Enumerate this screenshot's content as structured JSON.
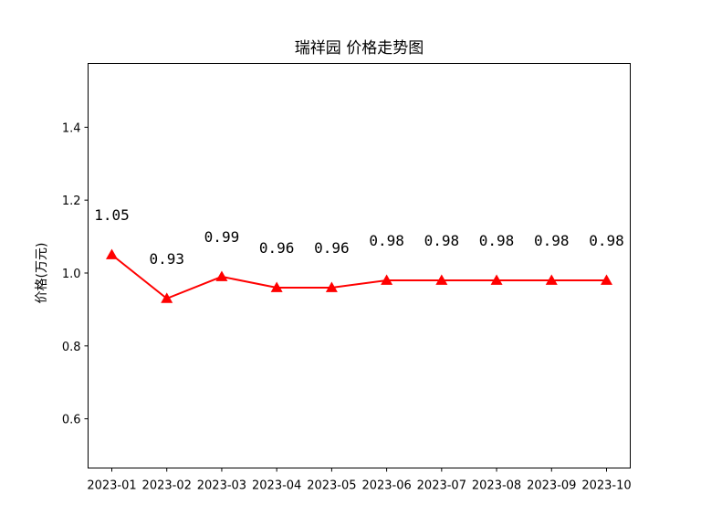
{
  "chart_data": {
    "type": "line",
    "title": "瑞祥园 价格走势图",
    "xlabel": "",
    "ylabel": "价格(万元)",
    "categories": [
      "2023-01",
      "2023-02",
      "2023-03",
      "2023-04",
      "2023-05",
      "2023-06",
      "2023-07",
      "2023-08",
      "2023-09",
      "2023-10"
    ],
    "values": [
      1.05,
      0.93,
      0.99,
      0.96,
      0.96,
      0.98,
      0.98,
      0.98,
      0.98,
      0.98
    ],
    "data_labels": [
      "1.05",
      "0.93",
      "0.99",
      "0.96",
      "0.96",
      "0.98",
      "0.98",
      "0.98",
      "0.98",
      "0.98"
    ],
    "ylim": [
      0.465,
      1.575
    ],
    "yticks": [
      0.6,
      0.8,
      1.0,
      1.2,
      1.4
    ],
    "ytick_labels": [
      "0.6",
      "0.8",
      "1.0",
      "1.2",
      "1.4"
    ],
    "grid": false,
    "line_color": "#ff0000",
    "marker": "triangle-up"
  }
}
